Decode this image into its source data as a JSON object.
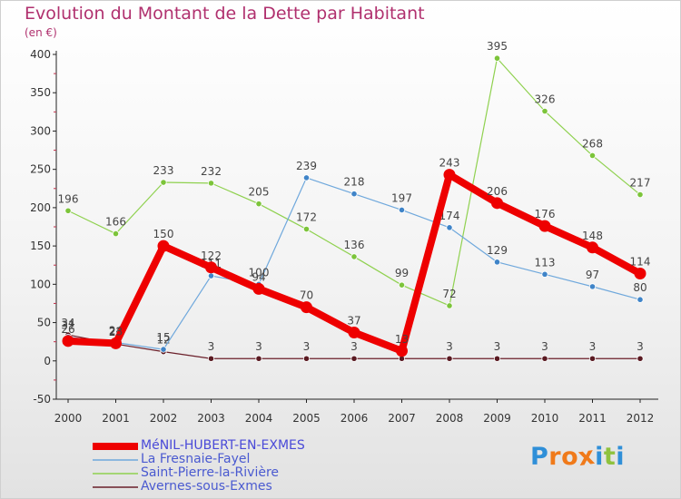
{
  "title": "Evolution du Montant de la Dette par Habitant",
  "unit_label": "(en €)",
  "logo": {
    "letters": [
      "P",
      "r",
      "o",
      "x",
      "i",
      "t",
      "i"
    ],
    "colors": [
      "#2f8fd8",
      "#f07a1a",
      "#f07a1a",
      "#f07a1a",
      "#2f8fd8",
      "#8fc23e",
      "#2f8fd8"
    ]
  },
  "chart_data": {
    "type": "line",
    "title": "Evolution du Montant de la Dette par Habitant",
    "ylabel": "(en €)",
    "xlabel": "",
    "ylim": [
      -50,
      400
    ],
    "yticks": [
      -50,
      0,
      50,
      100,
      150,
      200,
      250,
      300,
      350,
      400
    ],
    "grid": false,
    "categories": [
      "2000",
      "2001",
      "2002",
      "2003",
      "2004",
      "2005",
      "2006",
      "2007",
      "2008",
      "2009",
      "2010",
      "2011",
      "2012"
    ],
    "series": [
      {
        "name": "Avernes-sous-Exmes",
        "color": "#6b1f2a",
        "marker": "#5a1a22",
        "values": [
          34,
          22,
          12,
          3,
          3,
          3,
          3,
          3,
          3,
          3,
          3,
          3,
          3
        ],
        "labels": [
          "34",
          "22",
          "12",
          "3",
          "3",
          "3",
          "3",
          "3",
          "3",
          "3",
          "3",
          "3",
          "3"
        ]
      },
      {
        "name": "Saint-Pierre-la-Rivière",
        "color": "#8fd14f",
        "marker": "#7cc43a",
        "values": [
          196,
          166,
          233,
          232,
          205,
          172,
          136,
          99,
          72,
          395,
          326,
          268,
          217
        ],
        "labels": [
          "196",
          "166",
          "233",
          "232",
          "205",
          "172",
          "136",
          "99",
          "72",
          "395",
          "326",
          "268",
          "217"
        ]
      },
      {
        "name": "La Fresnaie-Fayel",
        "color": "#6fa8dc",
        "marker": "#3f84c8",
        "values": [
          31,
          24,
          15,
          111,
          100,
          239,
          218,
          197,
          174,
          129,
          113,
          97,
          80
        ],
        "labels": [
          "31",
          "24",
          "15",
          "111",
          "100",
          "239",
          "218",
          "197",
          "174",
          "129",
          "113",
          "97",
          "80"
        ]
      },
      {
        "name": "MéNIL-HUBERT-EN-EXMES",
        "color": "#ee0000",
        "marker": "#ee0000",
        "values": [
          26,
          23,
          150,
          122,
          94,
          70,
          37,
          13,
          243,
          206,
          176,
          148,
          114
        ],
        "labels": [
          "26",
          "23",
          "150",
          "122",
          "94",
          "70",
          "37",
          "13",
          "243",
          "206",
          "176",
          "148",
          "114"
        ]
      }
    ],
    "legend_order": [
      "MéNIL-HUBERT-EN-EXMES",
      "La Fresnaie-Fayel",
      "Saint-Pierre-la-Rivière",
      "Avernes-sous-Exmes"
    ],
    "legend_position": "bottom-left"
  }
}
